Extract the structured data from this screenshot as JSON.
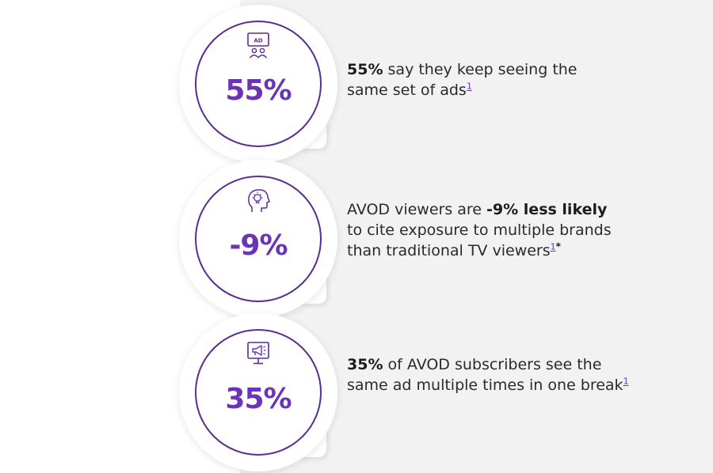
{
  "stats": [
    {
      "value": "55%",
      "icon": "ad-screen-audience-icon",
      "icon_label": "AD",
      "caption": {
        "bold_lead": "55%",
        "line1_rest": " say they keep seeing the",
        "line2": "same set of ads",
        "footnote": "1"
      }
    },
    {
      "value": "-9%",
      "icon": "head-lightbulb-icon",
      "caption": {
        "line1_start": "AVOD viewers are ",
        "line1_bold": "-9% less likely",
        "line2": "to cite exposure to multiple brands",
        "line3": "than traditional TV viewers",
        "footnote": "1",
        "footnote_mark": "*"
      }
    },
    {
      "value": "35%",
      "icon": "megaphone-monitor-icon",
      "caption": {
        "bold_lead": "35%",
        "line1_rest": " of AVOD subscribers see the",
        "line2": "same ad multiple times in one break",
        "footnote": "1"
      }
    }
  ],
  "colors": {
    "accent": "#6a34b8",
    "ring": "#5b2d8e",
    "panel": "#f2f2f2",
    "text": "#2a2a2a"
  }
}
